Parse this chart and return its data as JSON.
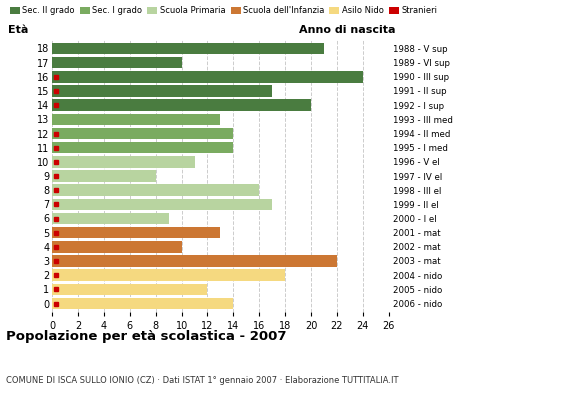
{
  "ages": [
    18,
    17,
    16,
    15,
    14,
    13,
    12,
    11,
    10,
    9,
    8,
    7,
    6,
    5,
    4,
    3,
    2,
    1,
    0
  ],
  "years": [
    "1988 - V sup",
    "1989 - VI sup",
    "1990 - III sup",
    "1991 - II sup",
    "1992 - I sup",
    "1993 - III med",
    "1994 - II med",
    "1995 - I med",
    "1996 - V el",
    "1997 - IV el",
    "1998 - III el",
    "1999 - II el",
    "2000 - I el",
    "2001 - mat",
    "2002 - mat",
    "2003 - mat",
    "2004 - nido",
    "2005 - nido",
    "2006 - nido"
  ],
  "values": [
    21,
    10,
    24,
    17,
    20,
    13,
    14,
    14,
    11,
    8,
    16,
    17,
    9,
    13,
    10,
    22,
    18,
    12,
    14
  ],
  "bar_colors": [
    "#4a7c40",
    "#4a7c40",
    "#4a7c40",
    "#4a7c40",
    "#4a7c40",
    "#7aab60",
    "#7aab60",
    "#7aab60",
    "#b8d4a0",
    "#b8d4a0",
    "#b8d4a0",
    "#b8d4a0",
    "#b8d4a0",
    "#cc7733",
    "#cc7733",
    "#cc7733",
    "#f5d980",
    "#f5d980",
    "#f5d980"
  ],
  "stranieri_ages": [
    16,
    15,
    14,
    12,
    11,
    10,
    9,
    8,
    7,
    6,
    5,
    4,
    3,
    2,
    1,
    0
  ],
  "legend_labels": [
    "Sec. II grado",
    "Sec. I grado",
    "Scuola Primaria",
    "Scuola dell'Infanzia",
    "Asilo Nido",
    "Stranieri"
  ],
  "legend_colors": [
    "#4a7c40",
    "#7aab60",
    "#b8d4a0",
    "#cc7733",
    "#f5d980",
    "#cc0000"
  ],
  "title": "Popolazione per età scolastica - 2007",
  "subtitle": "COMUNE DI ISCA SULLO IONIO (CZ) · Dati ISTAT 1° gennaio 2007 · Elaborazione TUTTITALIA.IT",
  "xlabel_age": "Età",
  "xlabel_year": "Anno di nascita",
  "xlim": [
    0,
    26
  ],
  "xticks": [
    0,
    2,
    4,
    6,
    8,
    10,
    12,
    14,
    16,
    18,
    20,
    22,
    24,
    26
  ],
  "bg_color": "#ffffff",
  "grid_color": "#cccccc",
  "stranieri_color": "#cc0000",
  "bar_height": 0.82
}
